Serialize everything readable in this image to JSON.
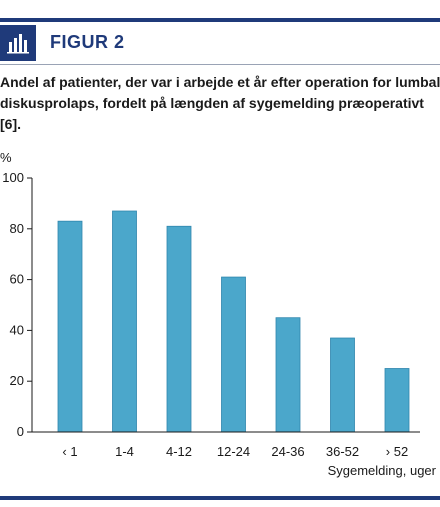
{
  "figure": {
    "label": "FIGUR 2",
    "caption_lines": [
      "Andel af patienter, der var i arbejde et år efter operation for lumbal",
      "diskusprolaps, fordelt på længden af sygemelding præoperativt",
      "[6]."
    ]
  },
  "colors": {
    "accent": "#1f3a7a",
    "bar": "#4ba7cb",
    "bar_edge": "#2f86ad"
  },
  "chart_data": {
    "type": "bar",
    "categories": [
      "‹ 1",
      "1-4",
      "4-12",
      "12-24",
      "24-36",
      "36-52",
      "› 52"
    ],
    "values": [
      83,
      87,
      81,
      61,
      45,
      37,
      25
    ],
    "ylabel": "%",
    "xlabel": "Sygemelding, uger",
    "ylim": [
      0,
      100
    ],
    "yticks": [
      0,
      20,
      40,
      60,
      80,
      100
    ],
    "grid": false,
    "legend": "none"
  }
}
